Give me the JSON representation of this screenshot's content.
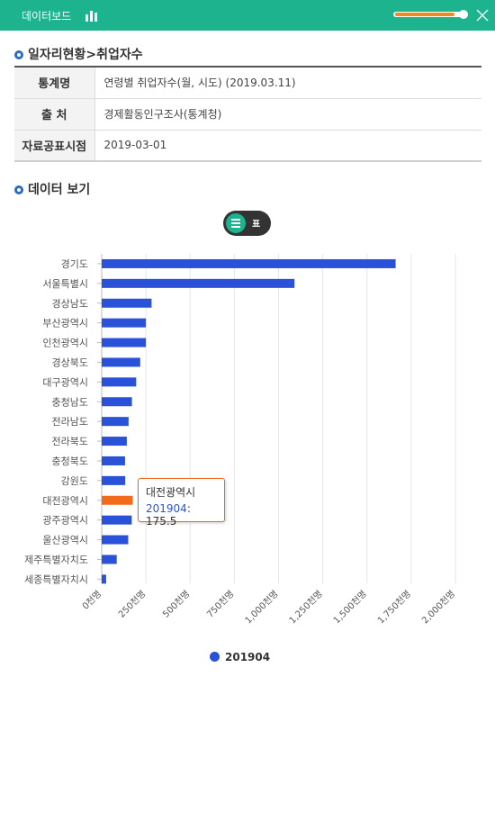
{
  "header": {
    "title": "데이터보드",
    "icon": "bar-chart-icon",
    "slider_value_pct": 85,
    "close_icon": "close-icon"
  },
  "section1": {
    "title": "일자리현황>취업자수"
  },
  "info": [
    {
      "key": "통계명",
      "value": "연령별 취업자수(월, 시도) (2019.03.11)"
    },
    {
      "key": "출 처",
      "value": "경제활동인구조사(통계청)"
    },
    {
      "key": "자료공표시점",
      "value": "2019-03-01"
    }
  ],
  "section2": {
    "title": "데이터 보기"
  },
  "toggle": {
    "chart_icon": "list-icon",
    "table_label": "표"
  },
  "tooltip": {
    "category": "대전광역시",
    "series": "201904",
    "value_text": ": 175.5"
  },
  "legend": {
    "label": "201904"
  },
  "colors": {
    "bar": "#2a52d9",
    "highlight": "#f26a1b",
    "accent": "#1db38f"
  },
  "chart_data": {
    "type": "bar",
    "orientation": "horizontal",
    "categories": [
      "경기도",
      "서울특별시",
      "경상남도",
      "부산광역시",
      "인천광역시",
      "경상북도",
      "대구광역시",
      "충청남도",
      "전라남도",
      "전라북도",
      "충청북도",
      "강원도",
      "대전광역시",
      "광주광역시",
      "울산광역시",
      "제주특별자치도",
      "세종특별자치시"
    ],
    "series": [
      {
        "name": "201904",
        "values": [
          1662,
          1090,
          282,
          250,
          250,
          218,
          195,
          171,
          152,
          142,
          132,
          133,
          175.5,
          170,
          150,
          85,
          25
        ]
      }
    ],
    "highlight_category": "대전광역시",
    "xticks": [
      "0천명",
      "250천명",
      "500천명",
      "750천명",
      "1,000천명",
      "1,250천명",
      "1,500천명",
      "1,750천명",
      "2,000천명"
    ],
    "xlim": [
      0,
      2000
    ],
    "grid": true,
    "legend_position": "bottom"
  }
}
